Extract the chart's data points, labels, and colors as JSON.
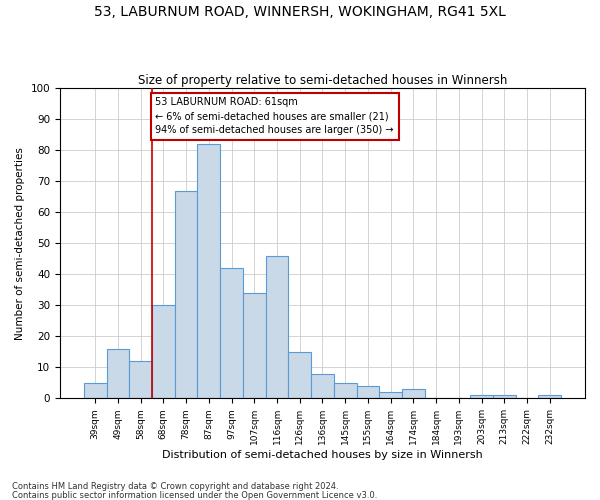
{
  "title": "53, LABURNUM ROAD, WINNERSH, WOKINGHAM, RG41 5XL",
  "subtitle": "Size of property relative to semi-detached houses in Winnersh",
  "xlabel": "Distribution of semi-detached houses by size in Winnersh",
  "ylabel": "Number of semi-detached properties",
  "bar_labels": [
    "39sqm",
    "49sqm",
    "58sqm",
    "68sqm",
    "78sqm",
    "87sqm",
    "97sqm",
    "107sqm",
    "116sqm",
    "126sqm",
    "136sqm",
    "145sqm",
    "155sqm",
    "164sqm",
    "174sqm",
    "184sqm",
    "193sqm",
    "203sqm",
    "213sqm",
    "222sqm",
    "232sqm"
  ],
  "bar_values": [
    5,
    16,
    12,
    30,
    67,
    82,
    42,
    34,
    46,
    15,
    8,
    5,
    4,
    2,
    3,
    0,
    0,
    1,
    1,
    0,
    1
  ],
  "bar_color": "#c9d9e8",
  "bar_edge_color": "#5b9bd5",
  "vline_x": 2.5,
  "vline_color": "#c00000",
  "annotation_title": "53 LABURNUM ROAD: 61sqm",
  "annotation_line1": "← 6% of semi-detached houses are smaller (21)",
  "annotation_line2": "94% of semi-detached houses are larger (350) →",
  "annotation_box_color": "#c00000",
  "ylim": [
    0,
    100
  ],
  "yticks": [
    0,
    10,
    20,
    30,
    40,
    50,
    60,
    70,
    80,
    90,
    100
  ],
  "footer1": "Contains HM Land Registry data © Crown copyright and database right 2024.",
  "footer2": "Contains public sector information licensed under the Open Government Licence v3.0.",
  "bg_color": "#ffffff",
  "grid_color": "#cccccc"
}
